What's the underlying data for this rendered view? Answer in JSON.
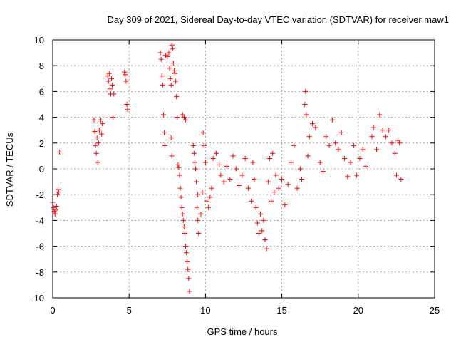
{
  "chart_data": {
    "type": "scatter",
    "title": "Day 309 of 2021, Sidereal Day-to-day VTEC variation (SDTVAR) for receiver maw1",
    "xlabel": "GPS time / hours",
    "ylabel": "SDTVAR / TECUs",
    "xlim": [
      0,
      25
    ],
    "ylim": [
      -10,
      10
    ],
    "xticks": [
      0,
      5,
      10,
      15,
      20,
      25
    ],
    "yticks": [
      -10,
      -8,
      -6,
      -4,
      -2,
      0,
      2,
      4,
      6,
      8,
      10
    ],
    "xtick_labels": [
      "0",
      "5",
      "10",
      "15",
      "20",
      "25"
    ],
    "ytick_labels": [
      "-10",
      "-8",
      "-6",
      "-4",
      "-2",
      "0",
      "2",
      "4",
      "6",
      "8",
      "10"
    ],
    "grid": true,
    "marker": "+",
    "color": "#ff0000",
    "series": [
      {
        "name": "maw1",
        "points": [
          [
            0.0,
            -2.6
          ],
          [
            0.05,
            -3.0
          ],
          [
            0.1,
            -3.3
          ],
          [
            0.15,
            -3.5
          ],
          [
            0.2,
            -3.2
          ],
          [
            0.25,
            -2.9
          ],
          [
            0.3,
            -2.0
          ],
          [
            0.35,
            -1.6
          ],
          [
            0.4,
            -1.8
          ],
          [
            0.45,
            1.3
          ],
          [
            2.7,
            3.8
          ],
          [
            2.75,
            2.9
          ],
          [
            2.8,
            1.8
          ],
          [
            2.85,
            1.2
          ],
          [
            2.9,
            2.4
          ],
          [
            2.95,
            0.5
          ],
          [
            3.0,
            2.0
          ],
          [
            3.05,
            3.0
          ],
          [
            3.15,
            3.8
          ],
          [
            3.2,
            2.7
          ],
          [
            3.25,
            3.5
          ],
          [
            3.6,
            7.2
          ],
          [
            3.65,
            6.8
          ],
          [
            3.7,
            7.4
          ],
          [
            3.75,
            6.2
          ],
          [
            3.8,
            5.8
          ],
          [
            3.85,
            7.0
          ],
          [
            3.9,
            6.5
          ],
          [
            3.95,
            4.0
          ],
          [
            4.0,
            5.8
          ],
          [
            4.7,
            7.5
          ],
          [
            4.75,
            7.3
          ],
          [
            4.8,
            6.8
          ],
          [
            4.85,
            5.0
          ],
          [
            4.9,
            4.6
          ],
          [
            7.05,
            9.0
          ],
          [
            7.1,
            8.5
          ],
          [
            7.15,
            7.2
          ],
          [
            7.2,
            6.5
          ],
          [
            7.25,
            4.2
          ],
          [
            7.3,
            2.8
          ],
          [
            7.35,
            1.8
          ],
          [
            7.4,
            8.8
          ],
          [
            7.5,
            8.7
          ],
          [
            7.6,
            9.0
          ],
          [
            7.65,
            7.8
          ],
          [
            7.7,
            7.0
          ],
          [
            7.75,
            6.5
          ],
          [
            7.8,
            9.6
          ],
          [
            7.85,
            9.3
          ],
          [
            7.9,
            8.2
          ],
          [
            7.95,
            7.6
          ],
          [
            7.75,
            2.4
          ],
          [
            7.8,
            1.0
          ],
          [
            8.0,
            7.4
          ],
          [
            8.05,
            6.8
          ],
          [
            8.1,
            5.6
          ],
          [
            8.15,
            4.0
          ],
          [
            8.2,
            0.3
          ],
          [
            8.25,
            0.1
          ],
          [
            8.3,
            -0.5
          ],
          [
            8.35,
            -1.5
          ],
          [
            8.4,
            -2.2
          ],
          [
            8.45,
            -3.0
          ],
          [
            8.5,
            -3.5
          ],
          [
            8.55,
            -4.0
          ],
          [
            8.6,
            -4.5
          ],
          [
            8.65,
            -5.0
          ],
          [
            8.7,
            -6.0
          ],
          [
            8.75,
            -6.5
          ],
          [
            8.8,
            -7.2
          ],
          [
            8.85,
            -7.8
          ],
          [
            8.9,
            -8.5
          ],
          [
            8.95,
            -9.5
          ],
          [
            8.5,
            4.2
          ],
          [
            8.6,
            4.0
          ],
          [
            8.7,
            3.8
          ],
          [
            9.2,
            1.8
          ],
          [
            9.25,
            1.2
          ],
          [
            9.3,
            0.5
          ],
          [
            9.35,
            0.0
          ],
          [
            9.4,
            -1.0
          ],
          [
            9.5,
            -2.0
          ],
          [
            9.45,
            -3.0
          ],
          [
            9.5,
            -4.0
          ],
          [
            9.55,
            -5.0
          ],
          [
            9.7,
            -3.5
          ],
          [
            9.8,
            -1.8
          ],
          [
            9.85,
            2.8
          ],
          [
            9.9,
            1.8
          ],
          [
            10.0,
            0.5
          ],
          [
            10.1,
            -2.5
          ],
          [
            10.2,
            -3.0
          ],
          [
            10.3,
            -2.2
          ],
          [
            10.4,
            -1.5
          ],
          [
            10.5,
            0.8
          ],
          [
            10.7,
            1.2
          ],
          [
            10.9,
            0.3
          ],
          [
            11.0,
            -0.5
          ],
          [
            11.2,
            -1.0
          ],
          [
            11.4,
            0.2
          ],
          [
            11.6,
            -0.8
          ],
          [
            11.8,
            1.0
          ],
          [
            12.0,
            0.0
          ],
          [
            12.2,
            -1.3
          ],
          [
            12.4,
            -0.5
          ],
          [
            12.6,
            0.8
          ],
          [
            12.8,
            -1.5
          ],
          [
            13.0,
            -2.5
          ],
          [
            13.1,
            0.5
          ],
          [
            13.2,
            -0.8
          ],
          [
            13.3,
            -3.0
          ],
          [
            13.4,
            -4.2
          ],
          [
            13.5,
            -5.0
          ],
          [
            13.6,
            -3.5
          ],
          [
            13.7,
            -4.8
          ],
          [
            13.8,
            -4.0
          ],
          [
            13.9,
            -5.5
          ],
          [
            14.0,
            -6.2
          ],
          [
            14.1,
            -1.0
          ],
          [
            14.2,
            0.8
          ],
          [
            14.3,
            -2.5
          ],
          [
            14.4,
            1.2
          ],
          [
            14.5,
            -1.8
          ],
          [
            14.6,
            -0.5
          ],
          [
            14.8,
            -1.5
          ],
          [
            15.0,
            -0.8
          ],
          [
            15.2,
            -2.8
          ],
          [
            15.4,
            -1.2
          ],
          [
            15.6,
            0.5
          ],
          [
            15.8,
            1.8
          ],
          [
            16.0,
            -1.5
          ],
          [
            16.2,
            0.0
          ],
          [
            16.3,
            -0.8
          ],
          [
            16.5,
            5.0
          ],
          [
            16.55,
            6.0
          ],
          [
            16.6,
            4.2
          ],
          [
            16.7,
            1.0
          ],
          [
            16.8,
            2.5
          ],
          [
            17.0,
            3.5
          ],
          [
            17.2,
            3.2
          ],
          [
            17.5,
            0.5
          ],
          [
            17.7,
            -0.2
          ],
          [
            17.9,
            2.5
          ],
          [
            18.1,
            1.8
          ],
          [
            18.3,
            3.8
          ],
          [
            18.5,
            2.0
          ],
          [
            18.7,
            1.5
          ],
          [
            18.9,
            2.8
          ],
          [
            19.1,
            0.8
          ],
          [
            19.3,
            -0.6
          ],
          [
            19.5,
            0.5
          ],
          [
            19.7,
            1.8
          ],
          [
            19.9,
            -0.5
          ],
          [
            20.1,
            0.8
          ],
          [
            20.3,
            1.5
          ],
          [
            20.5,
            0.2
          ],
          [
            20.9,
            2.5
          ],
          [
            21.0,
            3.2
          ],
          [
            21.2,
            1.5
          ],
          [
            21.4,
            4.2
          ],
          [
            21.6,
            3.0
          ],
          [
            21.8,
            2.5
          ],
          [
            22.0,
            3.0
          ],
          [
            22.2,
            2.0
          ],
          [
            22.4,
            1.2
          ],
          [
            22.5,
            -0.5
          ],
          [
            22.6,
            2.2
          ],
          [
            22.7,
            2.0
          ],
          [
            22.8,
            -0.8
          ]
        ]
      }
    ]
  }
}
